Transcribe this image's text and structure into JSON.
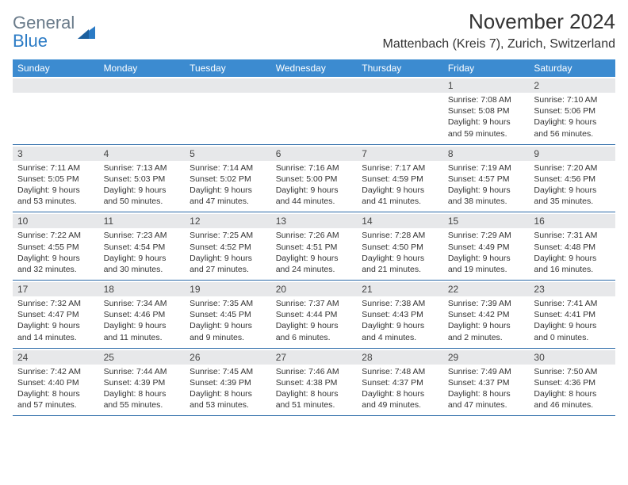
{
  "logo": {
    "general": "General",
    "blue": "Blue",
    "accent_color": "#2b7bc5",
    "gray_color": "#6a7b8a"
  },
  "header": {
    "month_title": "November 2024",
    "location": "Mattenbach (Kreis 7), Zurich, Switzerland"
  },
  "colors": {
    "dow_bg": "#3c8bd0",
    "week_border": "#2b6aa8",
    "num_band_bg": "#e7e8ea"
  },
  "dow": [
    "Sunday",
    "Monday",
    "Tuesday",
    "Wednesday",
    "Thursday",
    "Friday",
    "Saturday"
  ],
  "weeks": [
    [
      null,
      null,
      null,
      null,
      null,
      {
        "num": "1",
        "sunrise": "Sunrise: 7:08 AM",
        "sunset": "Sunset: 5:08 PM",
        "day1": "Daylight: 9 hours",
        "day2": "and 59 minutes."
      },
      {
        "num": "2",
        "sunrise": "Sunrise: 7:10 AM",
        "sunset": "Sunset: 5:06 PM",
        "day1": "Daylight: 9 hours",
        "day2": "and 56 minutes."
      }
    ],
    [
      {
        "num": "3",
        "sunrise": "Sunrise: 7:11 AM",
        "sunset": "Sunset: 5:05 PM",
        "day1": "Daylight: 9 hours",
        "day2": "and 53 minutes."
      },
      {
        "num": "4",
        "sunrise": "Sunrise: 7:13 AM",
        "sunset": "Sunset: 5:03 PM",
        "day1": "Daylight: 9 hours",
        "day2": "and 50 minutes."
      },
      {
        "num": "5",
        "sunrise": "Sunrise: 7:14 AM",
        "sunset": "Sunset: 5:02 PM",
        "day1": "Daylight: 9 hours",
        "day2": "and 47 minutes."
      },
      {
        "num": "6",
        "sunrise": "Sunrise: 7:16 AM",
        "sunset": "Sunset: 5:00 PM",
        "day1": "Daylight: 9 hours",
        "day2": "and 44 minutes."
      },
      {
        "num": "7",
        "sunrise": "Sunrise: 7:17 AM",
        "sunset": "Sunset: 4:59 PM",
        "day1": "Daylight: 9 hours",
        "day2": "and 41 minutes."
      },
      {
        "num": "8",
        "sunrise": "Sunrise: 7:19 AM",
        "sunset": "Sunset: 4:57 PM",
        "day1": "Daylight: 9 hours",
        "day2": "and 38 minutes."
      },
      {
        "num": "9",
        "sunrise": "Sunrise: 7:20 AM",
        "sunset": "Sunset: 4:56 PM",
        "day1": "Daylight: 9 hours",
        "day2": "and 35 minutes."
      }
    ],
    [
      {
        "num": "10",
        "sunrise": "Sunrise: 7:22 AM",
        "sunset": "Sunset: 4:55 PM",
        "day1": "Daylight: 9 hours",
        "day2": "and 32 minutes."
      },
      {
        "num": "11",
        "sunrise": "Sunrise: 7:23 AM",
        "sunset": "Sunset: 4:54 PM",
        "day1": "Daylight: 9 hours",
        "day2": "and 30 minutes."
      },
      {
        "num": "12",
        "sunrise": "Sunrise: 7:25 AM",
        "sunset": "Sunset: 4:52 PM",
        "day1": "Daylight: 9 hours",
        "day2": "and 27 minutes."
      },
      {
        "num": "13",
        "sunrise": "Sunrise: 7:26 AM",
        "sunset": "Sunset: 4:51 PM",
        "day1": "Daylight: 9 hours",
        "day2": "and 24 minutes."
      },
      {
        "num": "14",
        "sunrise": "Sunrise: 7:28 AM",
        "sunset": "Sunset: 4:50 PM",
        "day1": "Daylight: 9 hours",
        "day2": "and 21 minutes."
      },
      {
        "num": "15",
        "sunrise": "Sunrise: 7:29 AM",
        "sunset": "Sunset: 4:49 PM",
        "day1": "Daylight: 9 hours",
        "day2": "and 19 minutes."
      },
      {
        "num": "16",
        "sunrise": "Sunrise: 7:31 AM",
        "sunset": "Sunset: 4:48 PM",
        "day1": "Daylight: 9 hours",
        "day2": "and 16 minutes."
      }
    ],
    [
      {
        "num": "17",
        "sunrise": "Sunrise: 7:32 AM",
        "sunset": "Sunset: 4:47 PM",
        "day1": "Daylight: 9 hours",
        "day2": "and 14 minutes."
      },
      {
        "num": "18",
        "sunrise": "Sunrise: 7:34 AM",
        "sunset": "Sunset: 4:46 PM",
        "day1": "Daylight: 9 hours",
        "day2": "and 11 minutes."
      },
      {
        "num": "19",
        "sunrise": "Sunrise: 7:35 AM",
        "sunset": "Sunset: 4:45 PM",
        "day1": "Daylight: 9 hours",
        "day2": "and 9 minutes."
      },
      {
        "num": "20",
        "sunrise": "Sunrise: 7:37 AM",
        "sunset": "Sunset: 4:44 PM",
        "day1": "Daylight: 9 hours",
        "day2": "and 6 minutes."
      },
      {
        "num": "21",
        "sunrise": "Sunrise: 7:38 AM",
        "sunset": "Sunset: 4:43 PM",
        "day1": "Daylight: 9 hours",
        "day2": "and 4 minutes."
      },
      {
        "num": "22",
        "sunrise": "Sunrise: 7:39 AM",
        "sunset": "Sunset: 4:42 PM",
        "day1": "Daylight: 9 hours",
        "day2": "and 2 minutes."
      },
      {
        "num": "23",
        "sunrise": "Sunrise: 7:41 AM",
        "sunset": "Sunset: 4:41 PM",
        "day1": "Daylight: 9 hours",
        "day2": "and 0 minutes."
      }
    ],
    [
      {
        "num": "24",
        "sunrise": "Sunrise: 7:42 AM",
        "sunset": "Sunset: 4:40 PM",
        "day1": "Daylight: 8 hours",
        "day2": "and 57 minutes."
      },
      {
        "num": "25",
        "sunrise": "Sunrise: 7:44 AM",
        "sunset": "Sunset: 4:39 PM",
        "day1": "Daylight: 8 hours",
        "day2": "and 55 minutes."
      },
      {
        "num": "26",
        "sunrise": "Sunrise: 7:45 AM",
        "sunset": "Sunset: 4:39 PM",
        "day1": "Daylight: 8 hours",
        "day2": "and 53 minutes."
      },
      {
        "num": "27",
        "sunrise": "Sunrise: 7:46 AM",
        "sunset": "Sunset: 4:38 PM",
        "day1": "Daylight: 8 hours",
        "day2": "and 51 minutes."
      },
      {
        "num": "28",
        "sunrise": "Sunrise: 7:48 AM",
        "sunset": "Sunset: 4:37 PM",
        "day1": "Daylight: 8 hours",
        "day2": "and 49 minutes."
      },
      {
        "num": "29",
        "sunrise": "Sunrise: 7:49 AM",
        "sunset": "Sunset: 4:37 PM",
        "day1": "Daylight: 8 hours",
        "day2": "and 47 minutes."
      },
      {
        "num": "30",
        "sunrise": "Sunrise: 7:50 AM",
        "sunset": "Sunset: 4:36 PM",
        "day1": "Daylight: 8 hours",
        "day2": "and 46 minutes."
      }
    ]
  ]
}
